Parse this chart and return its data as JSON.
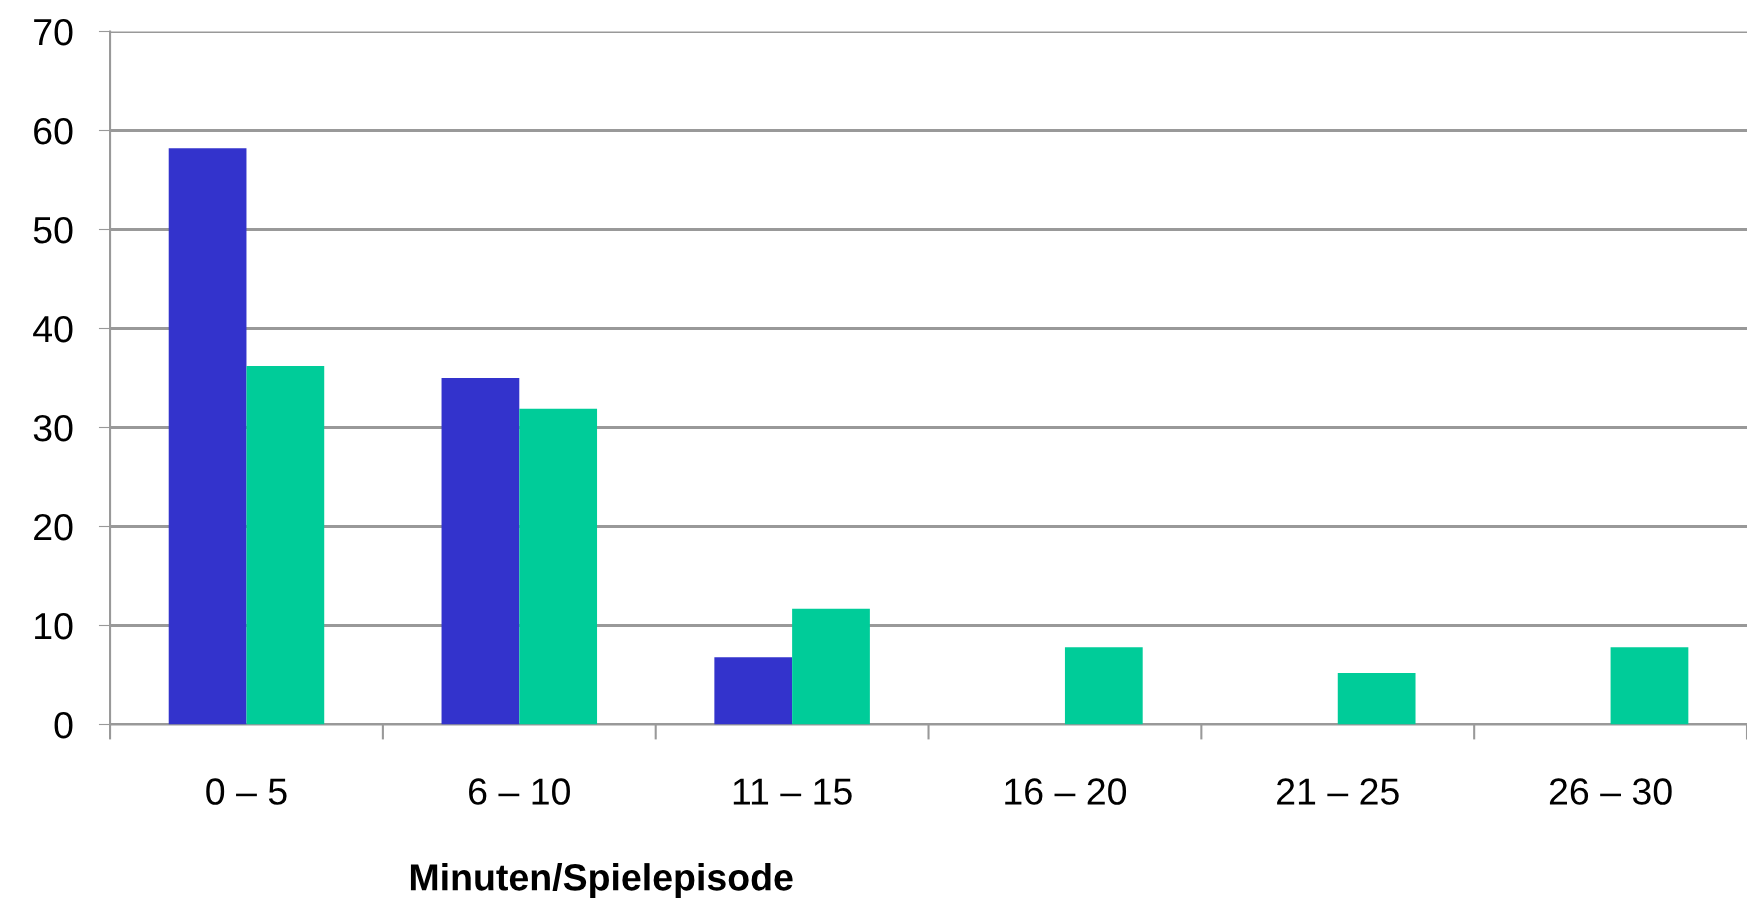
{
  "chart_data": {
    "type": "bar",
    "xlabel": "Minuten/Spielepisode",
    "categories": [
      "0 – 5",
      "6 – 10",
      "11 – 15",
      "16 – 20",
      "21 – 25",
      "26 – 30"
    ],
    "series": [
      {
        "color": "#3333cc",
        "values": [
          58.2,
          35.0,
          6.8,
          0,
          0,
          0
        ]
      },
      {
        "color": "#00cc99",
        "values": [
          36.2,
          31.9,
          11.7,
          7.8,
          5.2,
          7.8
        ]
      }
    ],
    "ylim": [
      0,
      70
    ],
    "yticks": [
      0,
      10,
      20,
      30,
      40,
      50,
      60,
      70
    ],
    "grid": "y"
  }
}
